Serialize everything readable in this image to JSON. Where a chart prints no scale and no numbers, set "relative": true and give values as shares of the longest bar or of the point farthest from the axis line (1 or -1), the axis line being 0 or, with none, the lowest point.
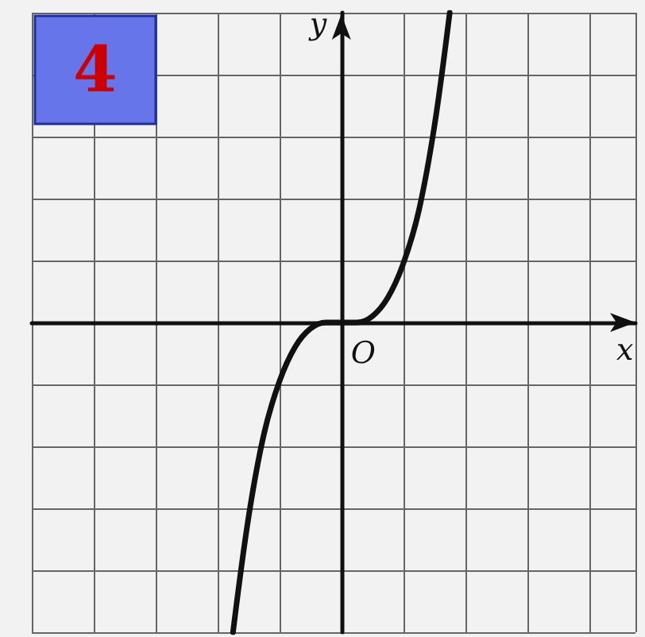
{
  "chart_data": {
    "type": "line",
    "title": "4",
    "xlabel": "x",
    "ylabel": "y",
    "annotations": [
      "O"
    ],
    "relative": true,
    "grid": true,
    "color": "#111111",
    "categories": [
      null,
      null,
      null,
      null,
      null,
      null,
      null,
      null,
      null,
      null,
      null,
      null,
      null,
      null,
      null,
      null,
      null,
      null,
      null,
      null,
      null,
      null,
      null,
      null,
      null,
      null,
      null,
      null,
      null,
      null,
      null,
      null,
      null,
      null,
      null,
      null,
      null,
      null,
      null,
      null
    ],
    "values": [
      null,
      null,
      null,
      null,
      null,
      null,
      null,
      null,
      null,
      null,
      null,
      null,
      null,
      -1,
      -0.63,
      -0.36,
      -0.19,
      -0.08,
      -0.02,
      0,
      0,
      0,
      0.02,
      0.08,
      0.19,
      0.36,
      0.63,
      1,
      null,
      null,
      null,
      null,
      null,
      null,
      null,
      null,
      null,
      null,
      null,
      null
    ]
  }
}
